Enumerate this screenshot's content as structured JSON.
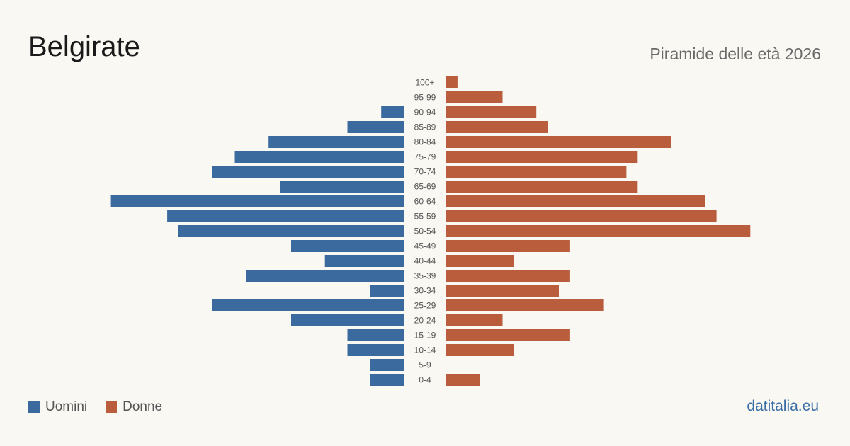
{
  "header": {
    "title": "Belgirate",
    "subtitle": "Piramide delle età 2026"
  },
  "footer": {
    "brand": "datitalia.eu"
  },
  "colors": {
    "men": "#3a6a9e",
    "women": "#b95d3c"
  },
  "chart_data": {
    "type": "bar",
    "orientation": "horizontal-pyramid",
    "categories": [
      "100+",
      "95-99",
      "90-94",
      "85-89",
      "80-84",
      "75-79",
      "70-74",
      "65-69",
      "60-64",
      "55-59",
      "50-54",
      "45-49",
      "40-44",
      "35-39",
      "30-34",
      "25-29",
      "20-24",
      "15-19",
      "10-14",
      "5-9",
      "0-4"
    ],
    "series": [
      {
        "name": "Uomini",
        "values": [
          0,
          0,
          2,
          5,
          12,
          15,
          17,
          11,
          26,
          21,
          20,
          10,
          7,
          14,
          3,
          17,
          10,
          5,
          5,
          3,
          3
        ]
      },
      {
        "name": "Donne",
        "values": [
          1,
          5,
          8,
          9,
          20,
          17,
          16,
          17,
          23,
          24,
          27,
          11,
          6,
          11,
          10,
          14,
          5,
          11,
          6,
          0,
          3
        ]
      }
    ],
    "legend": "bottom-left",
    "grid": false
  }
}
